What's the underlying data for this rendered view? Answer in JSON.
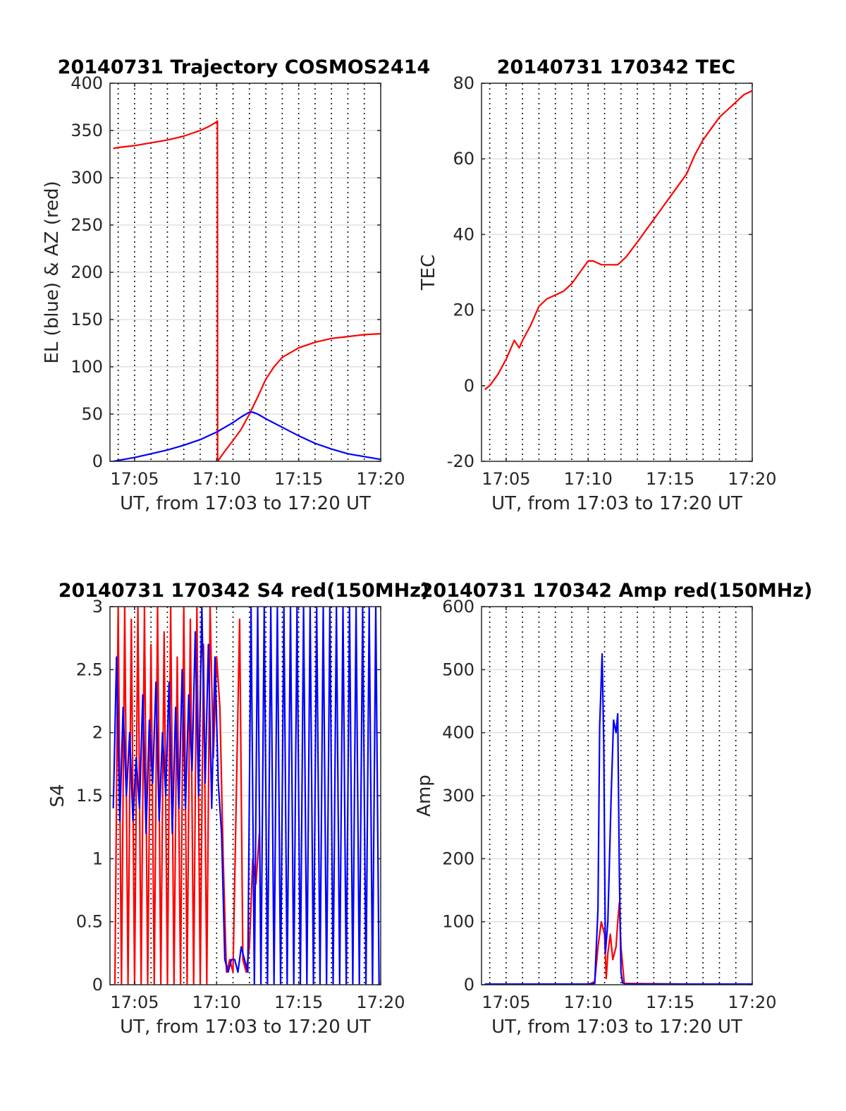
{
  "chart_data": [
    {
      "type": "line",
      "title": "20140731 Trajectory COSMOS2414",
      "xlabel": "UT, from 17:03 to 17:20 UT",
      "ylabel": "EL (blue) & AZ (red)",
      "xlim": [
        3.5,
        20
      ],
      "ylim": [
        0,
        400
      ],
      "xticks": [
        5,
        10,
        15,
        20
      ],
      "xtick_labels": [
        "17:05",
        "17:10",
        "17:15",
        "17:20"
      ],
      "yticks": [
        0,
        50,
        100,
        150,
        200,
        250,
        300,
        350,
        400
      ],
      "ytick_labels": [
        "0",
        "50",
        "100",
        "150",
        "200",
        "250",
        "300",
        "350",
        "400"
      ],
      "grid": {
        "x_dotted_minutes": true,
        "y_major": true
      },
      "series": [
        {
          "color": "#ff0000",
          "x": [
            3.7,
            4,
            5,
            6,
            7,
            8,
            9,
            9.5,
            9.9,
            10.05,
            10.06,
            10.3,
            10.6,
            11,
            11.5,
            12,
            12.5,
            13,
            13.5,
            14,
            15,
            16,
            17,
            18,
            19,
            20
          ],
          "values": [
            331,
            332,
            334,
            337,
            340,
            344,
            350,
            354,
            358,
            360,
            0,
            6,
            13,
            22,
            34,
            50,
            68,
            87,
            100,
            110,
            120,
            126,
            130,
            132,
            134,
            135
          ]
        },
        {
          "color": "#0000ff",
          "x": [
            3.7,
            4,
            5,
            6,
            7,
            8,
            9,
            10,
            10.5,
            11,
            11.5,
            12,
            12.2,
            12.5,
            13,
            14,
            15,
            16,
            17,
            18,
            19,
            20
          ],
          "values": [
            0,
            1,
            4,
            8,
            12,
            17,
            23,
            31,
            36,
            41,
            47,
            52,
            52,
            50,
            45,
            36,
            27,
            19,
            13,
            8,
            5,
            2
          ]
        }
      ]
    },
    {
      "type": "line",
      "title": "20140731 170342 TEC",
      "xlabel": "UT, from 17:03 to 17:20 UT",
      "ylabel": "TEC",
      "xlim": [
        3.5,
        20
      ],
      "ylim": [
        -20,
        80
      ],
      "xticks": [
        5,
        10,
        15,
        20
      ],
      "xtick_labels": [
        "17:05",
        "17:10",
        "17:15",
        "17:20"
      ],
      "yticks": [
        -20,
        0,
        20,
        40,
        60,
        80
      ],
      "ytick_labels": [
        "-20",
        "0",
        "20",
        "40",
        "60",
        "80"
      ],
      "grid": {
        "x_dotted_minutes": true,
        "y_major": true
      },
      "series": [
        {
          "color": "#ff0000",
          "x": [
            3.7,
            4,
            4.5,
            5,
            5.5,
            5.8,
            6,
            6.5,
            7,
            7.5,
            8,
            8.5,
            9,
            9.5,
            10,
            10.3,
            10.8,
            11.3,
            11.8,
            12.3,
            13,
            13.5,
            14,
            14.5,
            15,
            15.5,
            16,
            16.5,
            17,
            17.5,
            18,
            18.5,
            19,
            19.5,
            20
          ],
          "values": [
            -1,
            0,
            3,
            7,
            12,
            10,
            12,
            16,
            21,
            23,
            24,
            25,
            27,
            30,
            33,
            33,
            32,
            32,
            32,
            34,
            38,
            41,
            44,
            47,
            50,
            53,
            56,
            61,
            65,
            68,
            71,
            73,
            75,
            77,
            78
          ]
        }
      ]
    },
    {
      "type": "line",
      "title": "20140731 170342 S4 red(150MHz)",
      "xlabel": "UT, from 17:03 to 17:20 UT",
      "ylabel": "S4",
      "xlim": [
        3.5,
        20
      ],
      "ylim": [
        0,
        3
      ],
      "xticks": [
        5,
        10,
        15,
        20
      ],
      "xtick_labels": [
        "17:05",
        "17:10",
        "17:15",
        "17:20"
      ],
      "yticks": [
        0,
        0.5,
        1,
        1.5,
        2,
        2.5,
        3
      ],
      "ytick_labels": [
        "0",
        "0.5",
        "1",
        "1.5",
        "2",
        "2.5",
        "3"
      ],
      "grid": {
        "x_dotted_minutes": true,
        "y_major": true
      },
      "series": [
        {
          "color": "#ff0000",
          "x": [
            3.8,
            4.0,
            4.2,
            4.4,
            4.6,
            4.8,
            5.0,
            5.2,
            5.4,
            5.6,
            5.8,
            6.0,
            6.2,
            6.4,
            6.6,
            6.8,
            7.0,
            7.2,
            7.4,
            7.6,
            7.8,
            8.0,
            8.2,
            8.4,
            8.6,
            8.8,
            9.0,
            9.2,
            9.4,
            9.6,
            9.8,
            10.0,
            10.2,
            10.4,
            10.6,
            10.8,
            11.0,
            11.2,
            11.4,
            11.6,
            11.8,
            12.0,
            12.2,
            12.4,
            12.6
          ],
          "values": [
            0,
            3,
            0,
            3,
            0,
            2.9,
            0,
            3,
            0,
            3,
            0,
            2.7,
            0,
            3,
            0,
            2.8,
            0,
            3,
            0,
            2.6,
            0,
            3,
            0,
            2.9,
            0,
            3,
            0,
            2.7,
            0,
            3,
            1.8,
            2.6,
            2.2,
            1.0,
            0.1,
            0.2,
            0.1,
            1.5,
            2.9,
            0.2,
            0.1,
            0.3,
            1.0,
            0.8,
            1.2
          ]
        },
        {
          "color": "#0000ff",
          "x": [
            3.7,
            3.9,
            4.1,
            4.3,
            4.5,
            4.7,
            4.9,
            5.1,
            5.3,
            5.5,
            5.7,
            5.9,
            6.1,
            6.3,
            6.5,
            6.7,
            6.9,
            7.1,
            7.3,
            7.5,
            7.7,
            7.9,
            8.1,
            8.3,
            8.5,
            8.7,
            8.9,
            9.1,
            9.3,
            9.5,
            9.7,
            9.9,
            10.1,
            10.3,
            10.5,
            10.7,
            10.9,
            11.1,
            11.3,
            11.5,
            11.7,
            11.9,
            12.1,
            12.3,
            12.5,
            12.7,
            12.9,
            13.1,
            13.3,
            13.5,
            13.7,
            13.9,
            14.1,
            14.3,
            14.5,
            14.7,
            14.9,
            15.1,
            15.3,
            15.5,
            15.7,
            15.9,
            16.1,
            16.3,
            16.5,
            16.7,
            16.9,
            17.1,
            17.3,
            17.5,
            17.7,
            17.9,
            18.1,
            18.3,
            18.5,
            18.7,
            18.9,
            19.1,
            19.3,
            19.5,
            19.7,
            19.9
          ],
          "values": [
            1.4,
            2.6,
            1.3,
            2.2,
            1.5,
            2.0,
            1.3,
            1.8,
            1.4,
            2.3,
            1.2,
            2.1,
            1.6,
            2.4,
            1.3,
            2.0,
            1.5,
            2.4,
            1.2,
            2.2,
            1.4,
            2.5,
            1.4,
            2.3,
            1.7,
            2.8,
            1.5,
            3.0,
            1.6,
            2.7,
            1.4,
            2.6,
            1.6,
            1.2,
            0.2,
            0.1,
            0.2,
            0.2,
            0.1,
            0.3,
            0.2,
            0.1,
            3,
            0,
            3,
            0,
            3,
            0,
            3,
            0,
            3,
            0,
            3,
            0,
            3,
            0,
            3,
            0,
            3,
            0,
            3,
            0,
            3,
            0,
            3,
            0,
            3,
            0,
            3,
            0,
            3,
            0,
            3,
            0,
            3,
            0,
            3,
            0,
            3,
            0,
            3,
            0
          ]
        }
      ]
    },
    {
      "type": "line",
      "title": "20140731 170342 Amp red(150MHz)",
      "xlabel": "UT, from 17:03 to 17:20 UT",
      "ylabel": "Amp",
      "xlim": [
        3.5,
        20
      ],
      "ylim": [
        0,
        600
      ],
      "xticks": [
        5,
        10,
        15,
        20
      ],
      "xtick_labels": [
        "17:05",
        "17:10",
        "17:15",
        "17:20"
      ],
      "yticks": [
        0,
        100,
        200,
        300,
        400,
        500,
        600
      ],
      "ytick_labels": [
        "0",
        "100",
        "200",
        "300",
        "400",
        "500",
        "600"
      ],
      "grid": {
        "x_dotted_minutes": true,
        "y_major": true
      },
      "series": [
        {
          "color": "#ff0000",
          "x": [
            3.7,
            10.0,
            10.4,
            10.6,
            10.8,
            11.0,
            11.1,
            11.2,
            11.35,
            11.5,
            11.7,
            11.8,
            11.9,
            12.0,
            12.2,
            20
          ],
          "values": [
            0,
            0,
            5,
            60,
            100,
            80,
            10,
            50,
            80,
            40,
            60,
            100,
            130,
            60,
            2,
            0
          ]
        },
        {
          "color": "#0000ff",
          "x": [
            3.7,
            10.0,
            10.4,
            10.6,
            10.7,
            10.85,
            10.95,
            11.05,
            11.2,
            11.4,
            11.55,
            11.7,
            11.8,
            11.9,
            12.0,
            12.1,
            12.3,
            20
          ],
          "values": [
            1,
            1,
            2,
            120,
            410,
            525,
            380,
            50,
            100,
            300,
            420,
            400,
            430,
            180,
            20,
            3,
            1,
            1
          ]
        }
      ]
    }
  ]
}
